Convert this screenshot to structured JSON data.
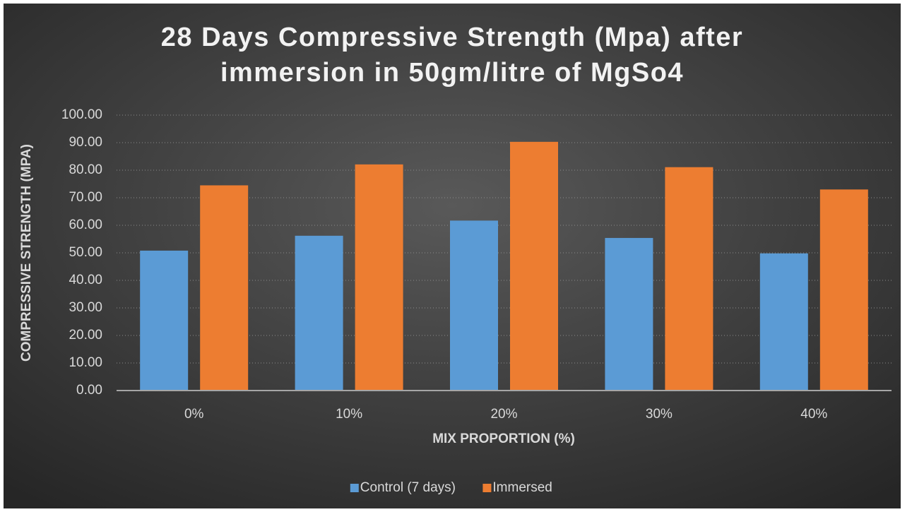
{
  "chart_data": {
    "type": "bar",
    "title": [
      "28 Days Compressive Strength (Mpa) after",
      "immersion in 50gm/litre of MgSo4"
    ],
    "x_label": "MIX PROPORTION (%)",
    "y_label": "COMPRESSIVE STRENGTH (MPA)",
    "categories": [
      "0%",
      "10%",
      "20%",
      "30%",
      "40%"
    ],
    "series": [
      {
        "name": "Control (7 days)",
        "color": "#5b9bd5",
        "values": [
          50.8,
          56.2,
          61.7,
          55.4,
          49.8
        ]
      },
      {
        "name": "Immersed",
        "color": "#ed7d31",
        "values": [
          74.5,
          82.1,
          90.3,
          81.1,
          73.0
        ]
      }
    ],
    "ylim": [
      0,
      100
    ],
    "yticks": [
      {
        "value": 0,
        "label": "0.00"
      },
      {
        "value": 10,
        "label": "10.00"
      },
      {
        "value": 20,
        "label": "20.00"
      },
      {
        "value": 30,
        "label": "30.00"
      },
      {
        "value": 40,
        "label": "40.00"
      },
      {
        "value": 50,
        "label": "50.00"
      },
      {
        "value": 60,
        "label": "60.00"
      },
      {
        "value": 70,
        "label": "70.00"
      },
      {
        "value": 80,
        "label": "80.00"
      },
      {
        "value": 90,
        "label": "90.00"
      },
      {
        "value": 100,
        "label": "100.00"
      }
    ],
    "grid": true,
    "legend": "bottom"
  }
}
